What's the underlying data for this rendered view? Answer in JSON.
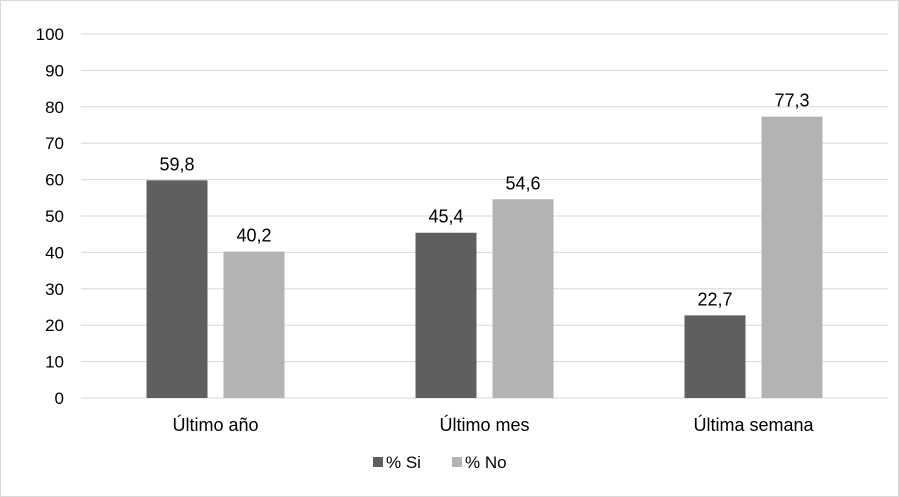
{
  "chart_data": {
    "type": "bar",
    "categories": [
      "Último año",
      "Último mes",
      "Última semana"
    ],
    "series": [
      {
        "name": "% Si",
        "values": [
          59.8,
          45.4,
          22.7
        ],
        "labels": [
          "59,8",
          "45,4",
          "22,7"
        ],
        "color": "#5f5f5f"
      },
      {
        "name": "% No",
        "values": [
          40.2,
          54.6,
          77.3
        ],
        "labels": [
          "40,2",
          "54,6",
          "77,3"
        ],
        "color": "#b3b3b3"
      }
    ],
    "ylim": [
      0,
      100
    ],
    "yticks": [
      "0",
      "10",
      "20",
      "30",
      "40",
      "50",
      "60",
      "70",
      "80",
      "90",
      "100"
    ],
    "grid": true,
    "gridColor": "#d9d9d9",
    "legend_position": "bottom",
    "title": "",
    "xlabel": "",
    "ylabel": ""
  }
}
